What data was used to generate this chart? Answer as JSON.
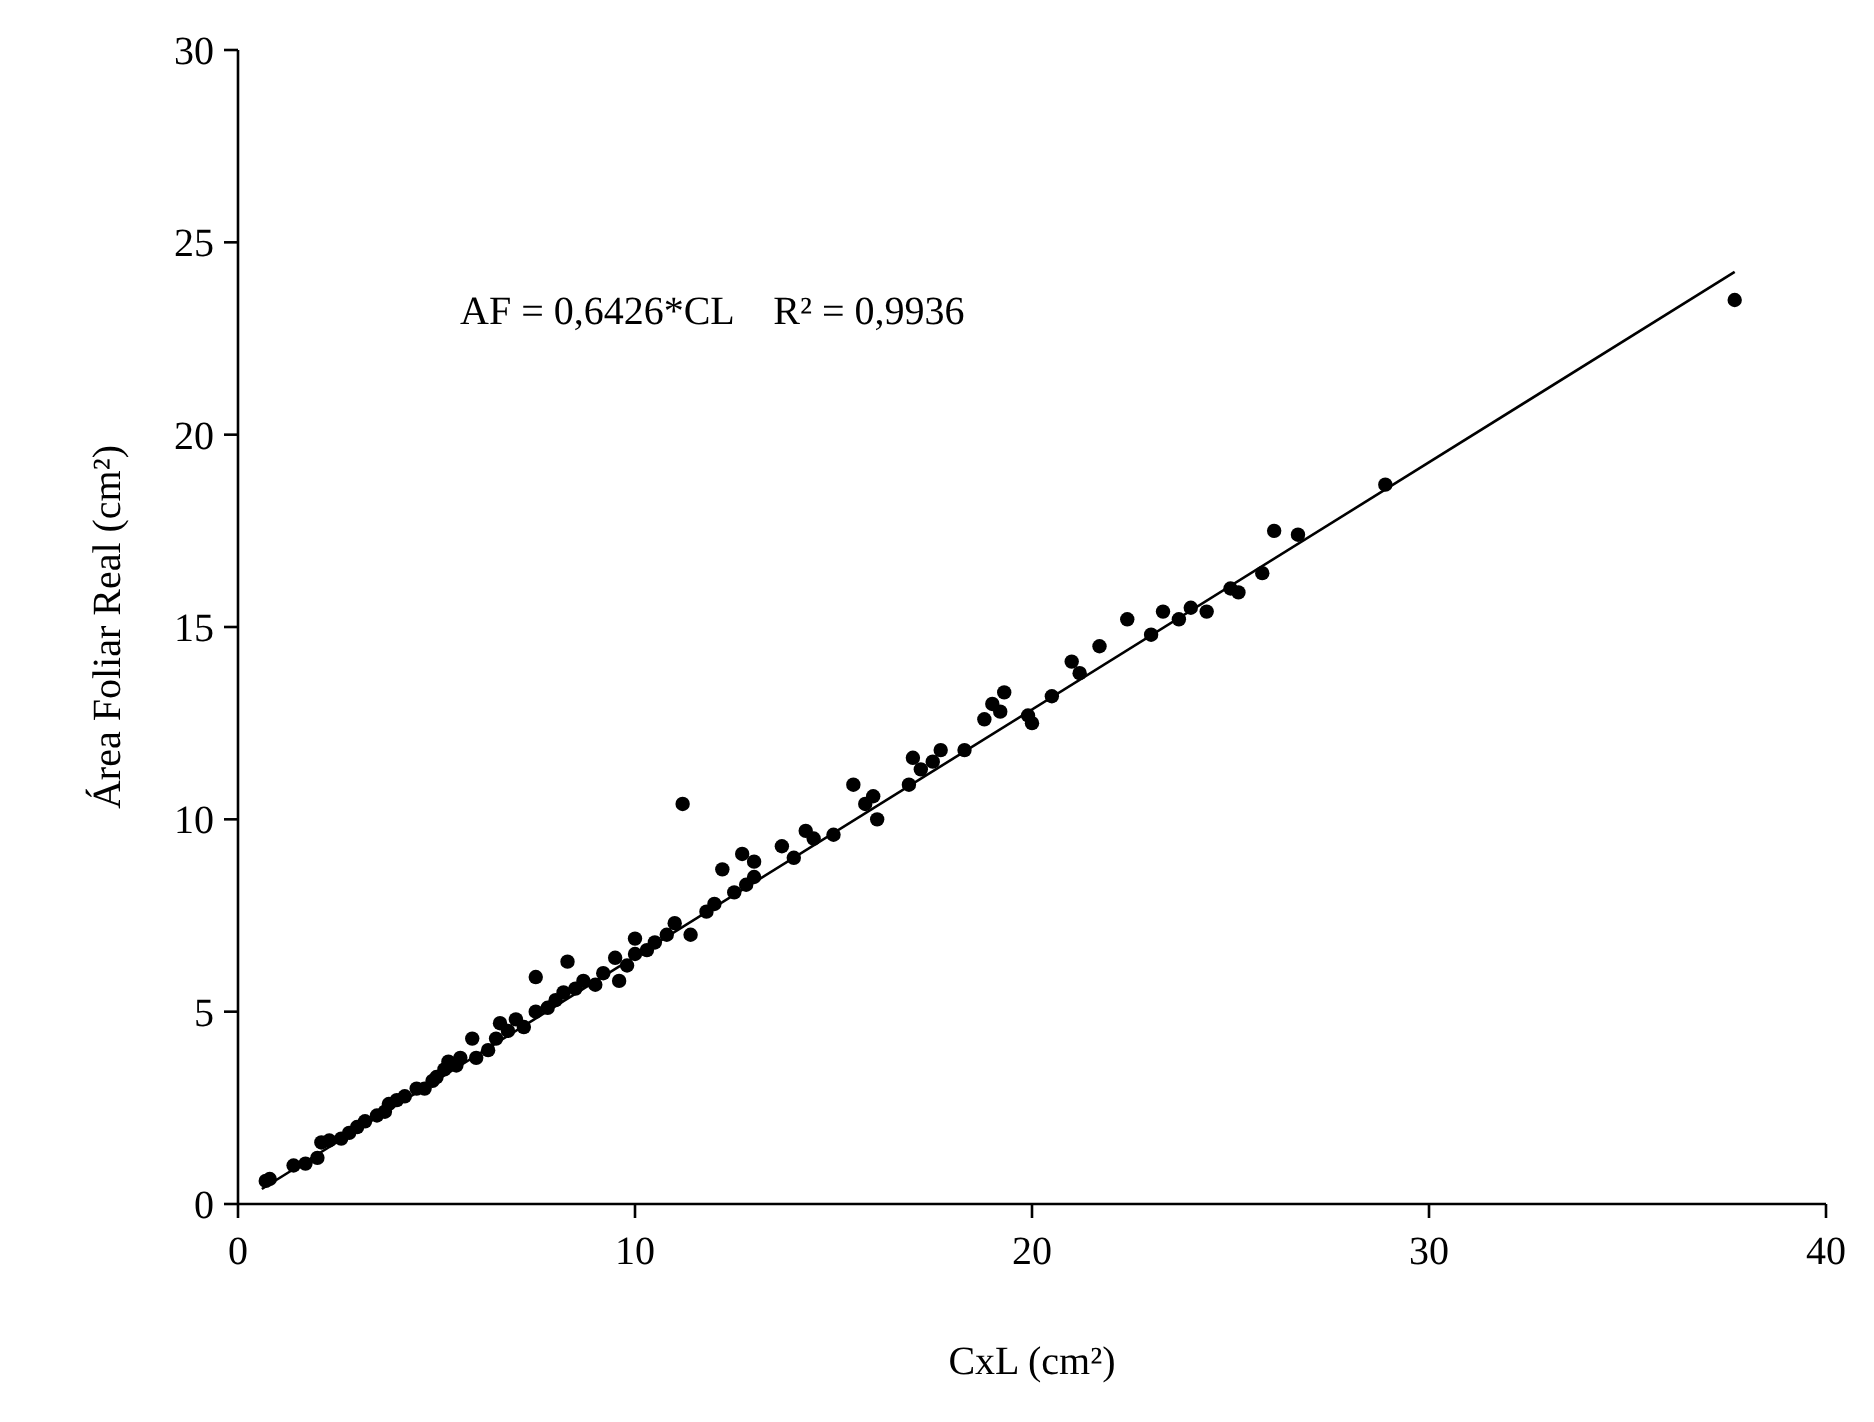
{
  "chart_data": {
    "type": "scatter",
    "xlabel": "CxL (cm²)",
    "ylabel": "Área Foliar Real (cm²)",
    "xlim": [
      0,
      40
    ],
    "ylim": [
      0,
      30
    ],
    "xticks": [
      0,
      10,
      20,
      30,
      40
    ],
    "yticks": [
      0,
      5,
      10,
      15,
      20,
      25,
      30
    ],
    "grid": false,
    "marker": "circle",
    "annotations": [
      "AF = 0,6426*CL    R² = 0,9936"
    ],
    "series": [
      {
        "color": "#000000",
        "x": [
          0.7,
          0.8,
          1.4,
          1.7,
          2.0,
          2.1,
          2.3,
          2.6,
          2.8,
          3.0,
          3.2,
          3.5,
          3.7,
          3.8,
          4.0,
          4.2,
          4.5,
          4.7,
          4.9,
          5.0,
          5.2,
          5.3,
          5.5,
          5.6,
          5.9,
          6.0,
          6.3,
          6.5,
          6.6,
          6.8,
          7.0,
          7.2,
          7.5,
          7.5,
          7.8,
          8.0,
          8.2,
          8.3,
          8.5,
          8.7,
          9.0,
          9.2,
          9.5,
          9.6,
          9.8,
          10.0,
          10.0,
          10.3,
          10.5,
          10.8,
          11.0,
          11.2,
          11.4,
          11.8,
          12.0,
          12.2,
          12.5,
          12.7,
          12.8,
          13.0,
          13.0,
          13.7,
          14.0,
          14.3,
          14.5,
          15.0,
          15.5,
          15.8,
          16.0,
          16.1,
          16.9,
          17.0,
          17.2,
          17.5,
          17.7,
          18.3,
          18.8,
          19.0,
          19.2,
          19.3,
          19.9,
          20.0,
          20.5,
          21.0,
          21.2,
          21.7,
          22.4,
          23.0,
          23.3,
          23.7,
          24.0,
          24.4,
          25.0,
          25.2,
          25.8,
          26.1,
          26.7,
          28.9,
          37.7
        ],
        "values": [
          0.6,
          0.65,
          1.0,
          1.05,
          1.2,
          1.6,
          1.65,
          1.7,
          1.85,
          2.0,
          2.15,
          2.3,
          2.4,
          2.6,
          2.7,
          2.8,
          3.0,
          3.0,
          3.2,
          3.3,
          3.5,
          3.7,
          3.6,
          3.8,
          4.3,
          3.8,
          4.0,
          4.3,
          4.7,
          4.5,
          4.8,
          4.6,
          5.0,
          5.9,
          5.1,
          5.3,
          5.5,
          6.3,
          5.6,
          5.8,
          5.7,
          6.0,
          6.4,
          5.8,
          6.2,
          6.5,
          6.9,
          6.6,
          6.8,
          7.0,
          7.3,
          10.4,
          7.0,
          7.6,
          7.8,
          8.7,
          8.1,
          9.1,
          8.3,
          8.5,
          8.9,
          9.3,
          9.0,
          9.7,
          9.5,
          9.6,
          10.9,
          10.4,
          10.6,
          10.0,
          10.9,
          11.6,
          11.3,
          11.5,
          11.8,
          11.8,
          12.6,
          13.0,
          12.8,
          13.3,
          12.7,
          12.5,
          13.2,
          14.1,
          13.8,
          14.5,
          15.2,
          14.8,
          15.4,
          15.2,
          15.5,
          15.4,
          16.0,
          15.9,
          16.4,
          17.5,
          17.4,
          18.7,
          23.5
        ]
      },
      {
        "type": "line",
        "color": "#000000",
        "marker": "none",
        "line_style": "solid",
        "x": [
          0.6,
          37.7
        ],
        "values": [
          0.39,
          24.23
        ]
      }
    ]
  }
}
